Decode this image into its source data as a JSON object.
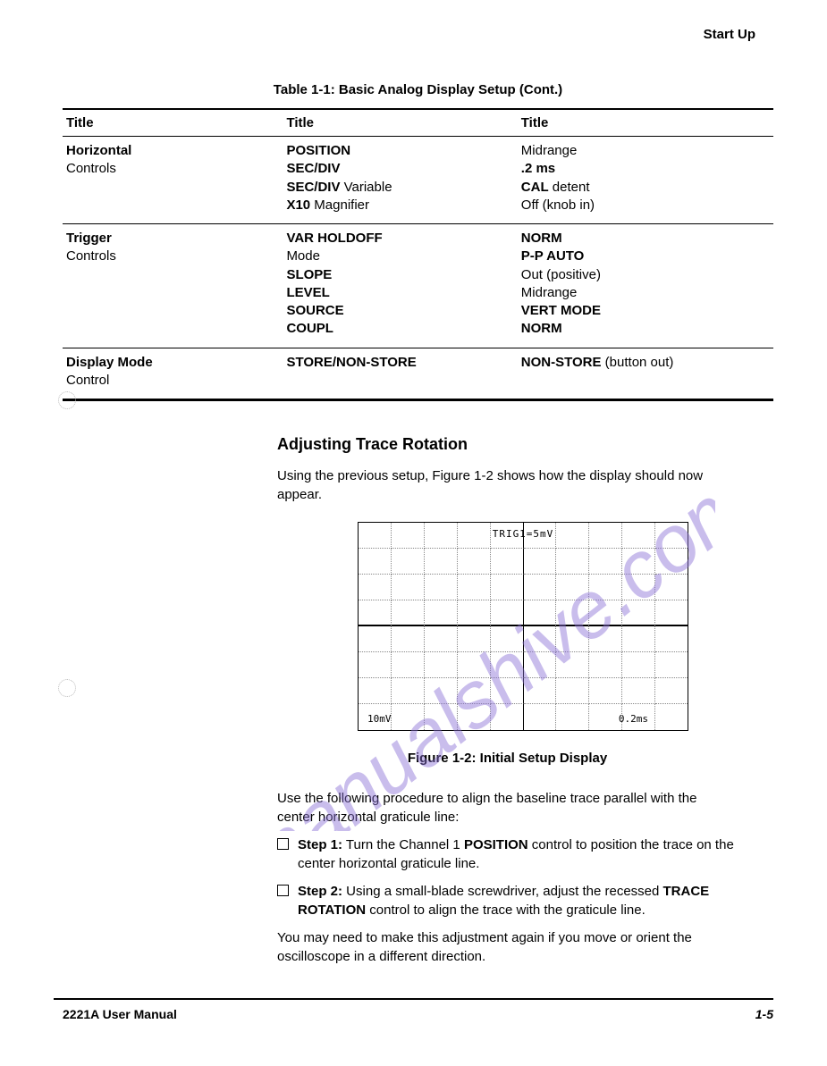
{
  "header": {
    "section": "Start Up"
  },
  "table": {
    "caption": "Table 1-1:  Basic Analog Display Setup (Cont.)",
    "headers": [
      "Title",
      "Title",
      "Title"
    ],
    "rows": [
      {
        "c1": "<span class=\"b\">Horizontal</span><br>Controls",
        "c2": "<span class=\"b\">POSITION</span><br><span class=\"b\">SEC/DIV</span><br><span class=\"b\">SEC/DIV</span> Variable<br><span class=\"b\">X10</span> Magnifier",
        "c3": "Midrange<br><span class=\"b\">.2 ms</span><br><span class=\"b\">CAL</span> detent<br>Off (knob in)"
      },
      {
        "c1": "<span class=\"b\">Trigger</span><br>Controls",
        "c2": "<span class=\"b\">VAR HOLDOFF</span><br>Mode<br><span class=\"b\">SLOPE</span><br><span class=\"b\">LEVEL</span><br><span class=\"b\">SOURCE</span><br><span class=\"b\">COUPL</span>",
        "c3": "<span class=\"b\">NORM</span><br><span class=\"b\">P-P AUTO</span><br>Out (positive)<br>Midrange<br><span class=\"b\">VERT MODE</span><br><span class=\"b\">NORM</span>"
      },
      {
        "c1": "<span class=\"b\">Display Mode</span><br>Control",
        "c2": "<span class=\"b\">STORE/NON-STORE</span>",
        "c3": "<span class=\"b\">NON-STORE</span> (button out)"
      }
    ]
  },
  "section": {
    "heading": "Adjusting Trace Rotation",
    "intro": "Using the previous setup, Figure 1-2 shows how the display should now appear.",
    "figure": {
      "trig_label": "TRIG1=5mV",
      "bl_label": "10mV",
      "br_label": "0.2ms",
      "caption": "Figure 1-2:  Initial Setup Display",
      "rows": 8,
      "cols": 10
    },
    "proc_intro": "Use the following procedure to align the baseline trace parallel with the center horizontal graticule line:",
    "steps": [
      "<span class=\"b\">Step 1:</span>  Turn the Channel 1 <span class=\"b\">POSITION</span> control to position the trace on the center horizontal graticule line.",
      "<span class=\"b\">Step 2:</span>  Using a small-blade screwdriver, adjust the recessed <span class=\"b\">TRACE ROTATION</span> control to align the trace with the graticule line."
    ],
    "outro": "You may need to make this adjustment again if you move or orient the oscilloscope in a different direction."
  },
  "footer": {
    "left": "2221A User Manual",
    "right": "1-5"
  },
  "watermark": {
    "text": "manualshive.com",
    "color": "#8a6fd6"
  }
}
